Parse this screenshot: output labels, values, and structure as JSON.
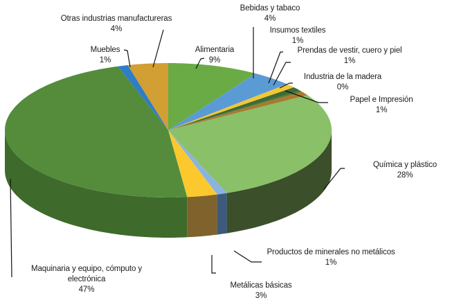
{
  "chart_data": {
    "type": "pie",
    "variant": "3d-pie",
    "title": "",
    "start_angle_deg": 0,
    "direction": "clockwise",
    "slices": [
      {
        "label": "Alimentaria",
        "value": 9,
        "display": "9%",
        "color": "#6aab46",
        "side": "#4c7d31"
      },
      {
        "label": "Bebidas y tabaco",
        "value": 4,
        "display": "4%",
        "color": "#5b9bd5",
        "side": "#3f6e98"
      },
      {
        "label": "Insumos textiles",
        "value": 1,
        "display": "1%",
        "color": "#f2c736",
        "side": "#a88a25"
      },
      {
        "label": "Prendas de vestir, cuero y piel",
        "value": 1,
        "display": "1%",
        "color": "#3e6b35",
        "side": "#2b4a24"
      },
      {
        "label": "Industria de la madera",
        "value": 0.3,
        "display": "0%",
        "color": "#4a7a3c",
        "side": "#33552a"
      },
      {
        "label": "Papel e Impresión",
        "value": 1,
        "display": "1%",
        "color": "#a97a2e",
        "side": "#7a5820"
      },
      {
        "label": "Química y plástico",
        "value": 28,
        "display": "28%",
        "color": "#89c068",
        "side": "#3b4f2b"
      },
      {
        "label": "Productos de minerales no metálicos",
        "value": 1,
        "display": "1%",
        "color": "#8ab4e0",
        "side": "#3d5a7c"
      },
      {
        "label": "Metálicas básicas",
        "value": 3,
        "display": "3%",
        "color": "#fbc92e",
        "side": "#80622c"
      },
      {
        "label": "Maquinaria y equipo, cómputo y electrónica",
        "value": 47,
        "display": "47%",
        "color": "#548c3c",
        "side": "#3e6a2c"
      },
      {
        "label": "Muebles",
        "value": 1,
        "display": "1%",
        "color": "#2f7dc6",
        "side": "#245f96"
      },
      {
        "label": "Otras industrias manufactureras",
        "value": 4,
        "display": "4%",
        "color": "#d19f33",
        "side": "#94712a"
      }
    ]
  },
  "labels": {
    "alimentaria": {
      "name": "Alimentaria",
      "pct": "9%"
    },
    "bebidas": {
      "name": "Bebidas y tabaco",
      "pct": "4%"
    },
    "insumos": {
      "name": "Insumos textiles",
      "pct": "1%"
    },
    "prendas": {
      "name": "Prendas de vestir, cuero y piel",
      "pct": "1%"
    },
    "madera": {
      "name": "Industria de la madera",
      "pct": "0%"
    },
    "papel": {
      "name": "Papel e Impresión",
      "pct": "1%"
    },
    "quimica": {
      "name": "Química y plástico",
      "pct": "28%"
    },
    "minerales": {
      "name": "Productos de minerales no metálicos",
      "pct": "1%"
    },
    "metalicas": {
      "name": "Metálicas básicas",
      "pct": "3%"
    },
    "maquinaria": {
      "name1": "Maquinaria y equipo, cómputo y",
      "name2": "electrónica",
      "pct": "47%"
    },
    "muebles": {
      "name": "Muebles",
      "pct": "1%"
    },
    "otras": {
      "name": "Otras industrias manufactureras",
      "pct": "4%"
    }
  }
}
